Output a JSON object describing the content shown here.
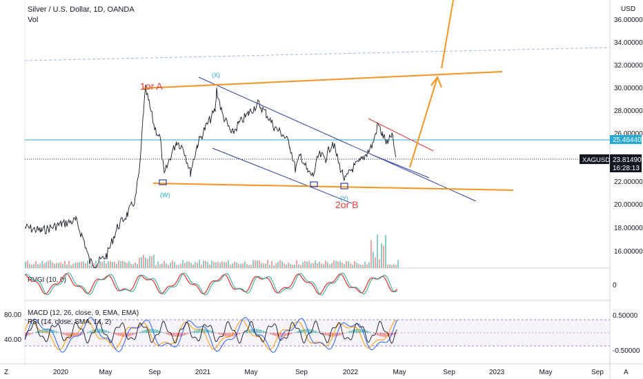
{
  "header": {
    "symbol_title": "Silver / U.S. Dollar, 1D, OANDA",
    "volume_label": "Vol"
  },
  "price_axis": {
    "currency": "USD",
    "ticks": [
      "36.00000",
      "34.00000",
      "32.00000",
      "30.00000",
      "28.00000",
      "26.00000",
      "22.00000",
      "20.00000",
      "18.00000",
      "16.00000"
    ],
    "level_badge": "25.46440",
    "ticker_badge": "XAGUSD",
    "last_price": "23.81490",
    "countdown": "16:28:13"
  },
  "indicators": {
    "rvgi_label": "RVGI (10, 0)",
    "rvgi_axis": "0",
    "macd_label": "MACD (12, 26, close, 9, EMA, EMA)",
    "rsi_label": "RSI (14, close, SMA, 14, 2)",
    "rsi_left_ticks": [
      "80.00",
      "40.00"
    ],
    "macd_right_ticks": [
      "0.50000",
      "-0.50000"
    ]
  },
  "annotations": {
    "wave_1": "1or A",
    "wave_2": "2or B",
    "x_label": "(X)",
    "w_label": "(W)",
    "y_label": "(Y)"
  },
  "time_axis": {
    "ticks": [
      "2020",
      "May",
      "Sep",
      "2021",
      "May",
      "Sep",
      "2022",
      "May",
      "Sep",
      "2023",
      "May",
      "Sep"
    ]
  },
  "footer": {
    "z_button": "Z",
    "a_button": "A"
  },
  "colors": {
    "price_line": "#131722",
    "orange": "#f7941d",
    "channel_blue": "#2a3f9e",
    "red_annotation": "#e53935",
    "cyan_level": "#26a9d6",
    "dashed_blue": "#9fb3e8",
    "vol_up": "#26a69a",
    "vol_down": "#ef5350"
  }
}
